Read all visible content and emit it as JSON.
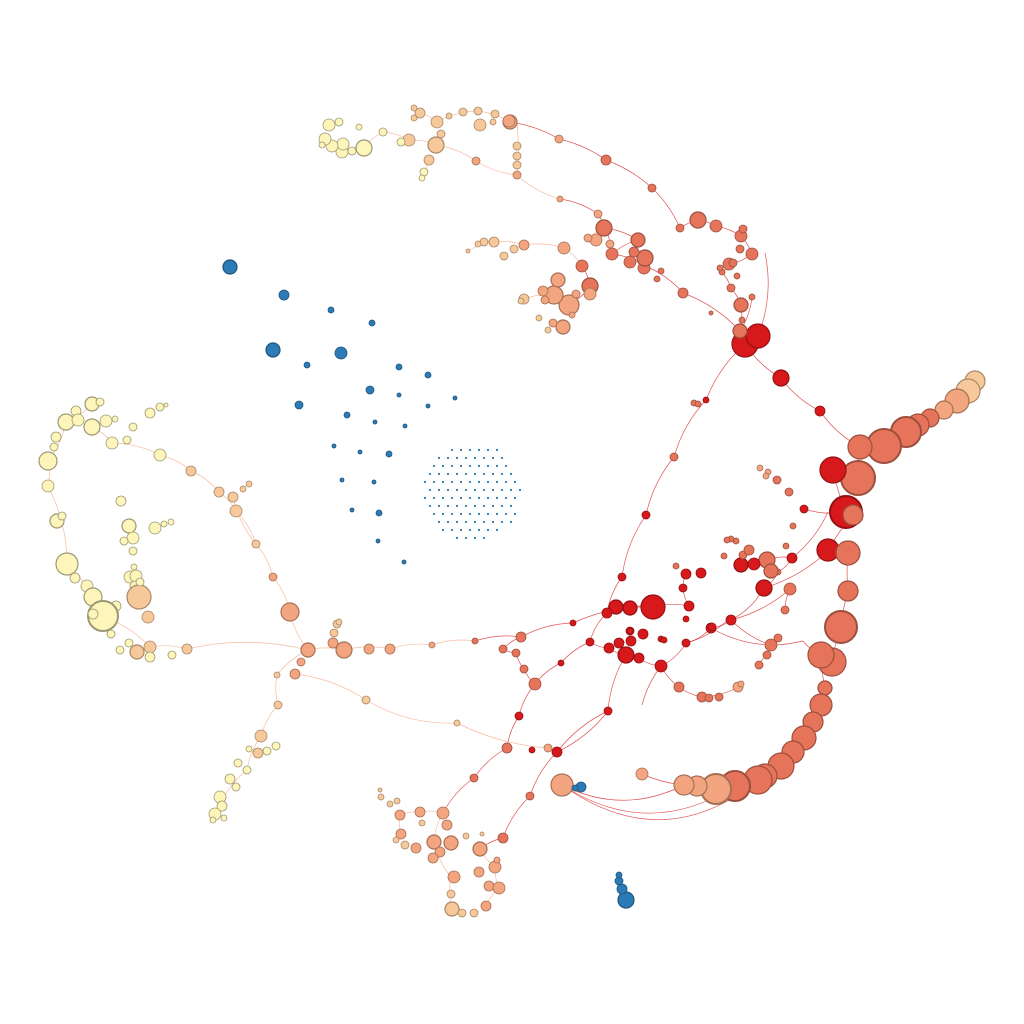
{
  "diagram": {
    "type": "network-graph",
    "labels_visible": false,
    "palette": {
      "red": "#d7191c",
      "salmon": "#e6745b",
      "peach": "#f2a57f",
      "light_peach": "#f7c89a",
      "cream": "#fdf5ba",
      "blue": "#2c7bb6",
      "edge_red": "#d7191c",
      "edge_peach": "#f4a582"
    }
  }
}
